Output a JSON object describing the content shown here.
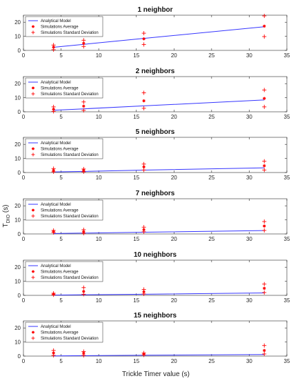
{
  "figure": {
    "ylabel_main": "T",
    "ylabel_sub": "DIO",
    "ylabel_unit": " (s)",
    "xlabel": "Trickle Timer value (s)"
  },
  "legend": {
    "model": "Analytical Model",
    "average": "Simulations Average",
    "stddev": "Simulations Standard Deviation"
  },
  "colors": {
    "model": "#3333ff",
    "sim": "#ff0000"
  },
  "chart_data": [
    {
      "type": "scatter",
      "title": "1 neighbor",
      "x": [
        4,
        8,
        16,
        32
      ],
      "xlim": [
        0,
        35
      ],
      "ylim": [
        0,
        25
      ],
      "xticks": [
        0,
        5,
        10,
        15,
        20,
        25,
        30,
        35
      ],
      "yticks": [
        0,
        10,
        20
      ],
      "series": [
        {
          "name": "Analytical Model",
          "kind": "line",
          "values": [
            2.2,
            4.3,
            8.5,
            16.8
          ]
        },
        {
          "name": "Simulations Average",
          "kind": "point",
          "values": [
            2.3,
            5.0,
            8.2,
            17.2
          ]
        },
        {
          "name": "Simulations Standard Deviation",
          "kind": "plus",
          "values": [
            [
              0.5,
              3.8
            ],
            [
              2.8,
              7.2
            ],
            [
              4.2,
              12.2
            ],
            [
              9.8,
              24.5
            ]
          ]
        }
      ]
    },
    {
      "type": "scatter",
      "title": "2 neighbors",
      "x": [
        4,
        8,
        16,
        32
      ],
      "xlim": [
        0,
        35
      ],
      "ylim": [
        0,
        25
      ],
      "xticks": [
        0,
        5,
        10,
        15,
        20,
        25,
        30,
        35
      ],
      "yticks": [
        0,
        10,
        20
      ],
      "series": [
        {
          "name": "Analytical Model",
          "kind": "line",
          "values": [
            1.1,
            2.1,
            4.2,
            8.4
          ]
        },
        {
          "name": "Simulations Average",
          "kind": "point",
          "values": [
            1.8,
            4.0,
            7.8,
            9.5
          ]
        },
        {
          "name": "Simulations Standard Deviation",
          "kind": "plus",
          "values": [
            [
              0.3,
              3.5
            ],
            [
              1.0,
              7.0
            ],
            [
              2.5,
              13.5
            ],
            [
              3.5,
              15.5
            ]
          ]
        }
      ]
    },
    {
      "type": "scatter",
      "title": "5 neighbors",
      "x": [
        4,
        8,
        16,
        32
      ],
      "xlim": [
        0,
        35
      ],
      "ylim": [
        0,
        25
      ],
      "xticks": [
        0,
        5,
        10,
        15,
        20,
        25,
        30,
        35
      ],
      "yticks": [
        0,
        10,
        20
      ],
      "series": [
        {
          "name": "Analytical Model",
          "kind": "line",
          "values": [
            0.4,
            0.8,
            1.7,
            3.3
          ]
        },
        {
          "name": "Simulations Average",
          "kind": "point",
          "values": [
            1.5,
            1.5,
            4.0,
            4.8
          ]
        },
        {
          "name": "Simulations Standard Deviation",
          "kind": "plus",
          "values": [
            [
              0.5,
              2.8
            ],
            [
              0.5,
              2.5
            ],
            [
              1.8,
              6.0
            ],
            [
              1.8,
              8.0
            ]
          ]
        }
      ]
    },
    {
      "type": "scatter",
      "title": "7 neighbors",
      "x": [
        4,
        8,
        16,
        32
      ],
      "xlim": [
        0,
        35
      ],
      "ylim": [
        0,
        25
      ],
      "xticks": [
        0,
        5,
        10,
        15,
        20,
        25,
        30,
        35
      ],
      "yticks": [
        0,
        10,
        20
      ],
      "series": [
        {
          "name": "Analytical Model",
          "kind": "line",
          "values": [
            0.3,
            0.6,
            1.2,
            2.4
          ]
        },
        {
          "name": "Simulations Average",
          "kind": "point",
          "values": [
            1.6,
            1.6,
            3.0,
            5.6
          ]
        },
        {
          "name": "Simulations Standard Deviation",
          "kind": "plus",
          "values": [
            [
              1.0,
              2.5
            ],
            [
              0.5,
              3.0
            ],
            [
              1.5,
              4.8
            ],
            [
              2.5,
              8.8
            ]
          ]
        }
      ]
    },
    {
      "type": "scatter",
      "title": "10 neighbors",
      "x": [
        4,
        8,
        16,
        32
      ],
      "xlim": [
        0,
        35
      ],
      "ylim": [
        0,
        25
      ],
      "xticks": [
        0,
        5,
        10,
        15,
        20,
        25,
        30,
        35
      ],
      "yticks": [
        0,
        10,
        20
      ],
      "series": [
        {
          "name": "Analytical Model",
          "kind": "line",
          "values": [
            0.2,
            0.4,
            0.8,
            1.7
          ]
        },
        {
          "name": "Simulations Average",
          "kind": "point",
          "values": [
            0.9,
            2.8,
            2.5,
            5.0
          ]
        },
        {
          "name": "Simulations Standard Deviation",
          "kind": "plus",
          "values": [
            [
              0.4,
              1.5
            ],
            [
              0.8,
              5.5
            ],
            [
              1.0,
              4.2
            ],
            [
              2.0,
              8.0
            ]
          ]
        }
      ]
    },
    {
      "type": "scatter",
      "title": "15 neighbors",
      "x": [
        4,
        8,
        16,
        32
      ],
      "xlim": [
        0,
        35
      ],
      "ylim": [
        0,
        25
      ],
      "xticks": [
        0,
        5,
        10,
        15,
        20,
        25,
        30,
        35
      ],
      "yticks": [
        0,
        10,
        20
      ],
      "series": [
        {
          "name": "Analytical Model",
          "kind": "line",
          "values": [
            0.1,
            0.3,
            0.6,
            1.1
          ]
        },
        {
          "name": "Simulations Average",
          "kind": "point",
          "values": [
            2.2,
            2.0,
            1.5,
            4.0
          ]
        },
        {
          "name": "Simulations Standard Deviation",
          "kind": "plus",
          "values": [
            [
              0.5,
              4.0
            ],
            [
              0.5,
              3.2
            ],
            [
              0.8,
              2.2
            ],
            [
              1.5,
              7.5
            ]
          ]
        }
      ]
    }
  ]
}
